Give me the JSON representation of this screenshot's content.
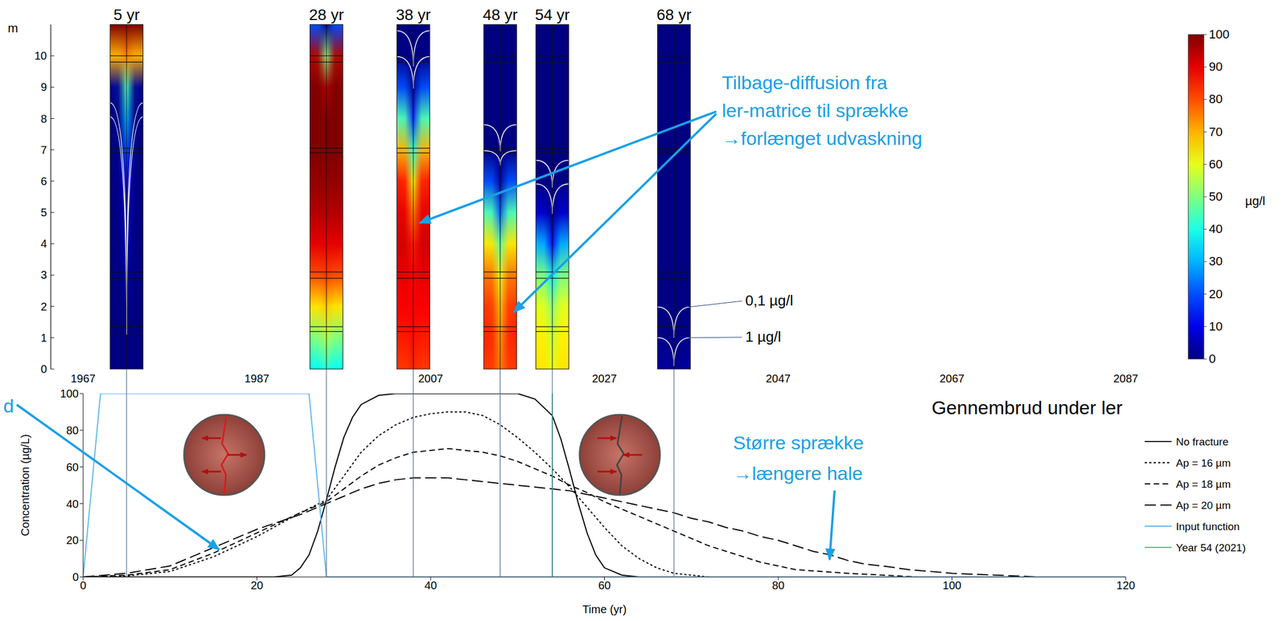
{
  "chart_data": [
    {
      "type": "heatmap_columns",
      "y_label": "m",
      "xlim": [
        1967,
        2087
      ],
      "xticks": [
        1967,
        1987,
        2007,
        2027,
        2047,
        2067,
        2087
      ],
      "ylim": [
        0,
        11
      ],
      "yticks": [
        0,
        1,
        2,
        3,
        4,
        5,
        6,
        7,
        8,
        9,
        10
      ],
      "depths": [
        11,
        10,
        9,
        8,
        7,
        6,
        5,
        4,
        3,
        2,
        1,
        0
      ],
      "layer_boundaries": [
        10,
        9.8,
        7.05,
        6.9,
        3.1,
        2.9,
        1.35,
        1.2
      ],
      "contour_levels": [
        0.1,
        1
      ],
      "columns": [
        {
          "label": "5 yr",
          "x": 1972,
          "matrix": [
            100,
            70,
            2,
            0,
            0,
            0,
            0,
            0,
            0,
            0,
            0,
            0
          ],
          "fracture": [
            100,
            75,
            45,
            30,
            20,
            12,
            8,
            5,
            3,
            1,
            0,
            0
          ]
        },
        {
          "label": "28 yr",
          "x": 1995,
          "matrix": [
            20,
            95,
            100,
            100,
            100,
            98,
            95,
            90,
            80,
            65,
            50,
            38
          ],
          "fracture": [
            0,
            50,
            95,
            100,
            100,
            98,
            95,
            90,
            82,
            68,
            55,
            42
          ]
        },
        {
          "label": "38 yr",
          "x": 2005,
          "matrix": [
            0,
            0.5,
            20,
            45,
            70,
            85,
            90,
            92,
            90,
            88,
            85,
            82
          ],
          "fracture": [
            0,
            0,
            0.3,
            15,
            40,
            60,
            75,
            85,
            88,
            88,
            86,
            84
          ]
        },
        {
          "label": "48 yr",
          "x": 2015,
          "matrix": [
            0,
            0,
            0,
            0,
            0.5,
            20,
            45,
            65,
            76,
            82,
            84,
            82
          ],
          "fracture": [
            0,
            0,
            0,
            0,
            0,
            2,
            20,
            45,
            60,
            68,
            72,
            75
          ]
        },
        {
          "label": "54 yr",
          "x": 2021,
          "matrix": [
            0,
            0,
            0,
            0,
            0,
            0.3,
            8,
            30,
            50,
            60,
            64,
            65
          ],
          "fracture": [
            0,
            0,
            0,
            0,
            0,
            0,
            0.5,
            12,
            35,
            50,
            56,
            60
          ]
        },
        {
          "label": "68 yr",
          "x": 2035,
          "matrix": [
            0,
            0,
            0,
            0,
            0,
            0,
            0,
            0,
            0,
            0.08,
            1,
            3
          ],
          "fracture": [
            0,
            0,
            0,
            0,
            0,
            0,
            0,
            0,
            0,
            0,
            0.1,
            1.1
          ],
          "contour_labels": [
            "0,1 µg/l",
            "1 µg/l"
          ]
        }
      ],
      "colorbar": {
        "range": [
          0,
          100
        ],
        "ticks": [
          0,
          10,
          20,
          30,
          40,
          50,
          60,
          70,
          80,
          90,
          100
        ],
        "label": "µg/l"
      },
      "annotations": [
        {
          "lines": [
            "Tilbage-diffusion fra",
            "ler-matrice til sprække",
            "→forlænget udvaskning"
          ]
        }
      ]
    },
    {
      "type": "line",
      "title": "Gennembrud under ler",
      "x_label": "Time (yr)",
      "y_label": "Concentration (µg/L)",
      "xlim": [
        0,
        120
      ],
      "xticks": [
        0,
        20,
        40,
        60,
        80,
        100,
        120
      ],
      "ylim": [
        0,
        100
      ],
      "yticks": [
        0,
        20,
        40,
        60,
        80,
        100
      ],
      "legend": "right",
      "series": [
        {
          "name": "No fracture",
          "color": "#000000",
          "line_style": "solid",
          "x": [
            0,
            22,
            24,
            25,
            26,
            27,
            28,
            29,
            30,
            31,
            32,
            34,
            36,
            50,
            52,
            54,
            55,
            56,
            57,
            58,
            59,
            60,
            62,
            64,
            120
          ],
          "values": [
            0,
            0,
            1,
            5,
            12,
            25,
            42,
            60,
            76,
            87,
            94,
            99,
            100,
            100,
            97,
            88,
            75,
            58,
            40,
            24,
            12,
            5,
            1,
            0,
            0
          ]
        },
        {
          "name": "Ap = 16 µm",
          "color": "#000000",
          "line_style": "dotted",
          "x": [
            0,
            5,
            10,
            15,
            20,
            25,
            28,
            30,
            32,
            34,
            36,
            38,
            40,
            42,
            44,
            46,
            48,
            50,
            52,
            54,
            56,
            58,
            60,
            62,
            64,
            66,
            68,
            70,
            72,
            120
          ],
          "values": [
            0,
            0.5,
            3,
            11,
            22,
            35,
            42,
            55,
            68,
            77,
            83,
            87,
            89,
            90,
            90,
            88,
            83,
            76,
            68,
            59,
            49,
            38,
            27,
            17,
            10,
            5,
            2,
            1,
            0,
            0
          ]
        },
        {
          "name": "Ap = 18 µm",
          "color": "#000000",
          "line_style": "dashed",
          "x": [
            0,
            5,
            10,
            15,
            20,
            25,
            28,
            30,
            32,
            34,
            36,
            38,
            40,
            42,
            44,
            46,
            48,
            50,
            52,
            54,
            56,
            58,
            60,
            62,
            64,
            66,
            68,
            70,
            72,
            74,
            76,
            78,
            80,
            82,
            85,
            88,
            92,
            96,
            120
          ],
          "values": [
            0,
            1,
            4,
            13,
            24,
            35,
            41,
            48,
            55,
            61,
            65,
            68,
            69,
            70,
            69,
            68,
            66,
            63,
            59,
            55,
            50,
            46,
            41,
            37,
            33,
            29,
            25,
            21,
            17,
            14,
            11,
            8,
            6,
            4,
            3,
            2,
            1,
            0,
            0
          ]
        },
        {
          "name": "Ap = 20 µm",
          "color": "#000000",
          "line_style": "long_dash",
          "x": [
            0,
            5,
            10,
            15,
            20,
            25,
            28,
            30,
            32,
            34,
            36,
            38,
            40,
            42,
            44,
            46,
            48,
            50,
            52,
            54,
            56,
            58,
            60,
            62,
            64,
            66,
            68,
            70,
            72,
            74,
            76,
            78,
            80,
            82,
            84,
            86,
            88,
            90,
            92,
            95,
            100,
            105,
            110,
            120
          ],
          "values": [
            0,
            2,
            6,
            16,
            26,
            34,
            40,
            44,
            48,
            51,
            53,
            54,
            54,
            54,
            53,
            52,
            51,
            50,
            49,
            48,
            47,
            45,
            43,
            41,
            39,
            37,
            35,
            32,
            30,
            27,
            25,
            22,
            20,
            17,
            14,
            12,
            9,
            7,
            6,
            4,
            2,
            1,
            0,
            0
          ]
        },
        {
          "name": "Input function",
          "color": "#5DB7EE",
          "line_style": "solid",
          "x": [
            0,
            2,
            26,
            28,
            120
          ],
          "values": [
            0,
            100,
            100,
            0,
            0
          ]
        },
        {
          "name": "Year 54 (2021)",
          "color": "#4CC37A",
          "line_style": "solid",
          "x": [
            54,
            54
          ],
          "values": [
            0,
            100
          ]
        }
      ],
      "annotations": [
        {
          "lines": [
            "Større sprække",
            "→længere hale"
          ]
        },
        {
          "lines": [
            "d"
          ]
        }
      ]
    }
  ]
}
